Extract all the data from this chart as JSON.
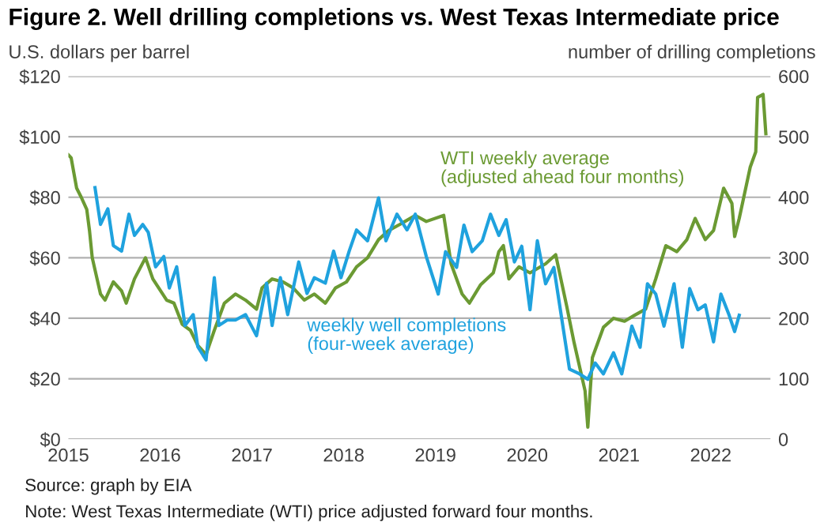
{
  "chart_data": {
    "type": "line",
    "title": "Figure 2. Well drilling completions vs. West Texas Intermediate price",
    "ylabel": "U.S. dollars per barrel",
    "y2label": "number of drilling completions",
    "xlim": [
      2015,
      2022.65
    ],
    "xticks": [
      2015,
      2016,
      2017,
      2018,
      2019,
      2020,
      2021,
      2022
    ],
    "ylim": [
      0,
      120
    ],
    "yticks": [
      {
        "value": 0,
        "label": "$0"
      },
      {
        "value": 20,
        "label": "$20"
      },
      {
        "value": 40,
        "label": "$40"
      },
      {
        "value": 60,
        "label": "$60"
      },
      {
        "value": 80,
        "label": "$80"
      },
      {
        "value": 100,
        "label": "$100"
      },
      {
        "value": 120,
        "label": "$120"
      }
    ],
    "y2lim": [
      0,
      600
    ],
    "y2ticks": [
      0,
      100,
      200,
      300,
      400,
      500,
      600
    ],
    "grid": "y",
    "legend": false,
    "series": [
      {
        "name": "WTI weekly average\n(adjusted ahead four months)",
        "color": "#6b9a33",
        "axis": "y",
        "x": [
          2015.0,
          2015.03,
          2015.09,
          2015.14,
          2015.2,
          2015.23,
          2015.26,
          2015.35,
          2015.4,
          2015.49,
          2015.58,
          2015.63,
          2015.72,
          2015.84,
          2015.92,
          2016.07,
          2016.15,
          2016.24,
          2016.33,
          2016.41,
          2016.5,
          2016.59,
          2016.7,
          2016.82,
          2016.93,
          2017.05,
          2017.11,
          2017.22,
          2017.34,
          2017.45,
          2017.57,
          2017.68,
          2017.8,
          2017.91,
          2018.03,
          2018.14,
          2018.26,
          2018.38,
          2018.49,
          2018.61,
          2018.78,
          2018.9,
          2019.09,
          2019.17,
          2019.29,
          2019.37,
          2019.49,
          2019.63,
          2019.69,
          2019.74,
          2019.8,
          2019.91,
          2020.03,
          2020.2,
          2020.31,
          2020.43,
          2020.51,
          2020.63,
          2020.66,
          2020.71,
          2020.83,
          2020.94,
          2021.06,
          2021.17,
          2021.29,
          2021.4,
          2021.51,
          2021.63,
          2021.74,
          2021.83,
          2021.94,
          2022.03,
          2022.14,
          2022.23,
          2022.26,
          2022.31,
          2022.43,
          2022.49,
          2022.51,
          2022.57,
          2022.6
        ],
        "values": [
          94,
          93,
          83,
          80,
          76,
          69,
          60,
          48,
          46,
          52,
          49,
          45,
          53,
          60,
          53,
          46,
          45,
          38,
          36,
          31,
          28,
          36,
          45,
          48,
          46,
          43,
          50,
          53,
          52,
          50,
          46,
          48,
          45,
          50,
          52,
          57,
          60,
          66,
          69,
          71,
          74,
          72,
          74,
          58,
          48,
          45,
          51,
          55,
          62,
          64,
          53,
          57,
          55,
          58,
          61,
          44,
          32,
          16,
          4,
          27,
          37,
          40,
          39,
          41,
          43,
          53,
          64,
          62,
          66,
          73,
          66,
          69,
          83,
          78,
          67,
          73,
          90,
          95,
          113,
          114,
          101
        ]
      },
      {
        "name": "weekly well completions\n(four-week average)",
        "color": "#1fa2de",
        "axis": "y2",
        "x": [
          2015.29,
          2015.35,
          2015.43,
          2015.49,
          2015.58,
          2015.66,
          2015.72,
          2015.81,
          2015.87,
          2015.95,
          2016.04,
          2016.1,
          2016.18,
          2016.27,
          2016.36,
          2016.41,
          2016.5,
          2016.59,
          2016.64,
          2016.73,
          2016.82,
          2016.93,
          2017.05,
          2017.16,
          2017.22,
          2017.31,
          2017.39,
          2017.51,
          2017.6,
          2017.68,
          2017.8,
          2017.89,
          2017.97,
          2018.06,
          2018.14,
          2018.26,
          2018.38,
          2018.46,
          2018.58,
          2018.69,
          2018.78,
          2018.9,
          2019.03,
          2019.11,
          2019.23,
          2019.31,
          2019.4,
          2019.51,
          2019.6,
          2019.69,
          2019.77,
          2019.86,
          2019.94,
          2020.03,
          2020.11,
          2020.2,
          2020.29,
          2020.37,
          2020.46,
          2020.57,
          2020.66,
          2020.74,
          2020.83,
          2020.94,
          2021.03,
          2021.14,
          2021.23,
          2021.31,
          2021.4,
          2021.49,
          2021.6,
          2021.69,
          2021.77,
          2021.86,
          2021.94,
          2022.03,
          2022.11,
          2022.2,
          2022.26,
          2022.31
        ],
        "values": [
          416,
          355,
          381,
          320,
          311,
          372,
          337,
          355,
          342,
          285,
          302,
          250,
          285,
          188,
          206,
          153,
          131,
          267,
          188,
          197,
          197,
          206,
          171,
          258,
          188,
          267,
          206,
          293,
          241,
          267,
          258,
          311,
          267,
          311,
          346,
          328,
          399,
          328,
          372,
          346,
          372,
          302,
          240,
          310,
          284,
          354,
          310,
          328,
          372,
          337,
          363,
          293,
          319,
          214,
          328,
          257,
          284,
          205,
          116,
          108,
          99,
          126,
          108,
          143,
          108,
          187,
          152,
          257,
          240,
          187,
          257,
          152,
          249,
          214,
          222,
          161,
          240,
          205,
          178,
          205
        ]
      }
    ],
    "annotations": [
      "Source: graph by EIA",
      "Note: West Texas Intermediate (WTI) price adjusted forward four months."
    ]
  }
}
